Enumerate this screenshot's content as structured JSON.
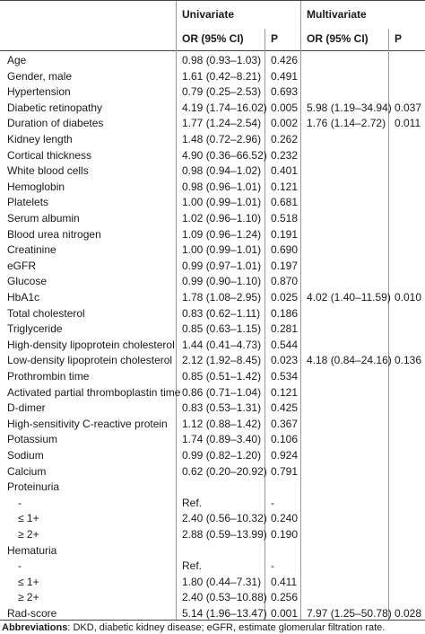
{
  "table": {
    "group_headers": {
      "univariate": "Univariate",
      "multivariate": "Multivariate"
    },
    "sub_headers": {
      "uni_or": "OR (95% CI)",
      "uni_p": "P",
      "multi_or": "OR (95% CI)",
      "multi_p": "P"
    },
    "rows": [
      {
        "var": "Age",
        "uor": "0.98 (0.93–1.03)",
        "up": "0.426",
        "mor": "",
        "mp": "",
        "indent": false
      },
      {
        "var": "Gender, male",
        "uor": "1.61 (0.42–8.21)",
        "up": "0.491",
        "mor": "",
        "mp": "",
        "indent": false
      },
      {
        "var": "Hypertension",
        "uor": "0.79 (0.25–2.53)",
        "up": "0.693",
        "mor": "",
        "mp": "",
        "indent": false
      },
      {
        "var": "Diabetic retinopathy",
        "uor": "4.19 (1.74–16.02)",
        "up": "0.005",
        "mor": "5.98 (1.19–34.94)",
        "mp": "0.037",
        "indent": false
      },
      {
        "var": "Duration of diabetes",
        "uor": "1.77 (1.24–2.54)",
        "up": "0.002",
        "mor": "1.76 (1.14–2.72)",
        "mp": "0.011",
        "indent": false
      },
      {
        "var": "Kidney length",
        "uor": "1.48 (0.72–2.96)",
        "up": "0.262",
        "mor": "",
        "mp": "",
        "indent": false
      },
      {
        "var": "Cortical thickness",
        "uor": "4.90 (0.36–66.52)",
        "up": "0.232",
        "mor": "",
        "mp": "",
        "indent": false
      },
      {
        "var": "White blood cells",
        "uor": "0.98 (0.94–1.02)",
        "up": "0.401",
        "mor": "",
        "mp": "",
        "indent": false
      },
      {
        "var": "Hemoglobin",
        "uor": "0.98 (0.96–1.01)",
        "up": "0.121",
        "mor": "",
        "mp": "",
        "indent": false
      },
      {
        "var": "Platelets",
        "uor": "1.00 (0.99–1.01)",
        "up": "0.681",
        "mor": "",
        "mp": "",
        "indent": false
      },
      {
        "var": "Serum albumin",
        "uor": "1.02 (0.96–1.10)",
        "up": "0.518",
        "mor": "",
        "mp": "",
        "indent": false
      },
      {
        "var": "Blood urea nitrogen",
        "uor": "1.09 (0.96–1.24)",
        "up": "0.191",
        "mor": "",
        "mp": "",
        "indent": false
      },
      {
        "var": "Creatinine",
        "uor": "1.00 (0.99–1.01)",
        "up": "0.690",
        "mor": "",
        "mp": "",
        "indent": false
      },
      {
        "var": "eGFR",
        "uor": "0.99 (0.97–1.01)",
        "up": "0.197",
        "mor": "",
        "mp": "",
        "indent": false
      },
      {
        "var": "Glucose",
        "uor": "0.99 (0.90–1.10)",
        "up": "0.870",
        "mor": "",
        "mp": "",
        "indent": false
      },
      {
        "var": "HbA1c",
        "uor": "1.78 (1.08–2.95)",
        "up": "0.025",
        "mor": "4.02 (1.40–11.59)",
        "mp": "0.010",
        "indent": false
      },
      {
        "var": "Total cholesterol",
        "uor": "0.83 (0.62–1.11)",
        "up": "0.186",
        "mor": "",
        "mp": "",
        "indent": false
      },
      {
        "var": "Triglyceride",
        "uor": "0.85 (0.63–1.15)",
        "up": "0.281",
        "mor": "",
        "mp": "",
        "indent": false
      },
      {
        "var": "High-density lipoprotein cholesterol",
        "uor": "1.44 (0.41–4.73)",
        "up": "0.544",
        "mor": "",
        "mp": "",
        "indent": false
      },
      {
        "var": "Low-density lipoprotein cholesterol",
        "uor": "2.12 (1.92–8.45)",
        "up": "0.023",
        "mor": "4.18 (0.84–24.16)",
        "mp": "0.136",
        "indent": false
      },
      {
        "var": "Prothrombin time",
        "uor": "0.85 (0.51–1.42)",
        "up": "0.534",
        "mor": "",
        "mp": "",
        "indent": false
      },
      {
        "var": "Activated partial thromboplastin time",
        "uor": "0.86 (0.71–1.04)",
        "up": "0.121",
        "mor": "",
        "mp": "",
        "indent": false
      },
      {
        "var": "D-dimer",
        "uor": "0.83 (0.53–1.31)",
        "up": "0.425",
        "mor": "",
        "mp": "",
        "indent": false
      },
      {
        "var": "High-sensitivity C-reactive protein",
        "uor": "1.12 (0.88–1.42)",
        "up": "0.367",
        "mor": "",
        "mp": "",
        "indent": false
      },
      {
        "var": "Potassium",
        "uor": "1.74 (0.89–3.40)",
        "up": "0.106",
        "mor": "",
        "mp": "",
        "indent": false
      },
      {
        "var": "Sodium",
        "uor": "0.99 (0.82–1.20)",
        "up": "0.924",
        "mor": "",
        "mp": "",
        "indent": false
      },
      {
        "var": "Calcium",
        "uor": "0.62 (0.20–20.92)",
        "up": "0.791",
        "mor": "",
        "mp": "",
        "indent": false
      },
      {
        "var": "Proteinuria",
        "uor": "",
        "up": "",
        "mor": "",
        "mp": "",
        "indent": false
      },
      {
        "var": "-",
        "uor": "Ref.",
        "up": "-",
        "mor": "",
        "mp": "",
        "indent": true
      },
      {
        "var": "≤ 1+",
        "uor": "2.40 (0.56–10.32)",
        "up": "0.240",
        "mor": "",
        "mp": "",
        "indent": true
      },
      {
        "var": "≥ 2+",
        "uor": "2.88 (0.59–13.99)",
        "up": "0.190",
        "mor": "",
        "mp": "",
        "indent": true
      },
      {
        "var": "Hematuria",
        "uor": "",
        "up": "",
        "mor": "",
        "mp": "",
        "indent": false
      },
      {
        "var": "-",
        "uor": "Ref.",
        "up": "-",
        "mor": "",
        "mp": "",
        "indent": true
      },
      {
        "var": "≤ 1+",
        "uor": "1.80 (0.44–7.31)",
        "up": "0.411",
        "mor": "",
        "mp": "",
        "indent": true
      },
      {
        "var": "≥ 2+",
        "uor": "2.40 (0.53–10.88)",
        "up": "0.256",
        "mor": "",
        "mp": "",
        "indent": true
      },
      {
        "var": "Rad-score",
        "uor": "5.14 (1.96–13.47)",
        "up": "0.001",
        "mor": "7.97 (1.25–50.78)",
        "mp": "0.028",
        "indent": false
      }
    ]
  },
  "footer": {
    "label": "Abbreviations",
    "text": ": DKD, diabetic kidney disease; eGFR, estimate glomerular filtration rate."
  },
  "colors": {
    "rule": "#444444",
    "grid": "#999999",
    "text": "#1a1a1a"
  }
}
